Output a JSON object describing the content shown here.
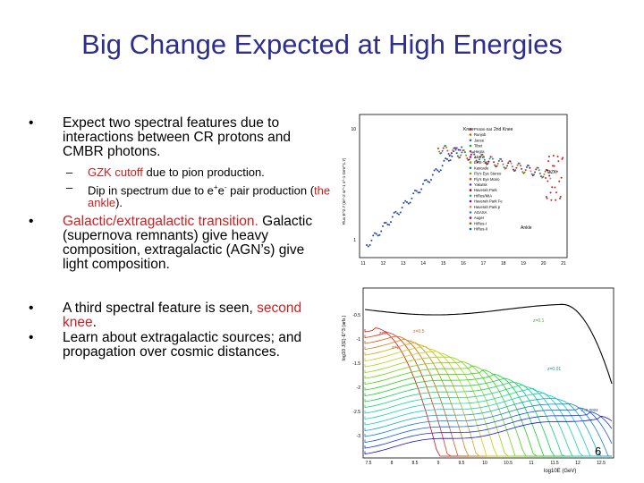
{
  "slide": {
    "title": "Big Change Expected at High Energies",
    "page_number": "6"
  },
  "bullets": [
    {
      "text": "Expect two spectral features due to interactions between CR protons and CMBR photons."
    },
    {
      "red": "Galactic/extragalactic transition.",
      "rest": " Galactic (supernova remnants) give heavy composition, extragalactic (AGN’s) give light composition."
    },
    {
      "pre": "A third spectral feature is seen, ",
      "red": "second knee",
      "post": "."
    },
    {
      "text": "Learn about extragalactic sources; and propagation over cosmic distances."
    }
  ],
  "subbullets": [
    {
      "red": "GZK cutoff",
      "rest": " due to pion production."
    },
    {
      "pre": "Dip in spectrum due to e",
      "sup1": "+",
      "mid": "e",
      "sup2": "-",
      "post": " pair production (",
      "red": "the ankle",
      "end": ")."
    }
  ],
  "figure_top": {
    "ylabel": "Flux·E^2.7 (m^-2 sr^-1 s^-1 GeV^1.7)",
    "annotations": {
      "knee": "Knee",
      "second_knee": "2nd Knee",
      "gzk": "GZK",
      "ankle": "Ankle"
    },
    "y_ticks": [
      "10",
      "1"
    ],
    "x_ticks": [
      "11",
      "12",
      "13",
      "14",
      "15",
      "16",
      "17",
      "18",
      "19",
      "20",
      "21"
    ],
    "legend": [
      "Proton-Sat",
      "Runjob",
      "Jacee",
      "Tibet",
      "Hegra",
      "Akeno",
      "EAS-Top",
      "Kascade",
      "Fly's Eye Stereo",
      "Fly's Eye Mono",
      "Yakutsk",
      "Haverah Park",
      "HiRes/MIA",
      "Haverah Park Fe",
      "Haverah Park p",
      "AGASA",
      "Auger",
      "HiRes-I",
      "HiRes-II"
    ]
  },
  "figure_bottom": {
    "ylabel": "log10 J(E)·E^3 (arb.)",
    "xlabel": "log10E (GeV)",
    "y_ticks": [
      "-0.5",
      "-1",
      "-1.5",
      "-2",
      "-2.5",
      "-3"
    ],
    "x_ticks": [
      "7.5",
      "8",
      "8.5",
      "9",
      "9.5",
      "10",
      "10.5",
      "11",
      "11.5",
      "12",
      "12.5"
    ],
    "z_labels": [
      "z=0",
      "z=0.1",
      "z=0.5",
      "z=1",
      "z=0.01",
      "z=0.0004"
    ]
  },
  "colors": {
    "title": "#2e2e8c",
    "red": "#cc1f1f"
  }
}
